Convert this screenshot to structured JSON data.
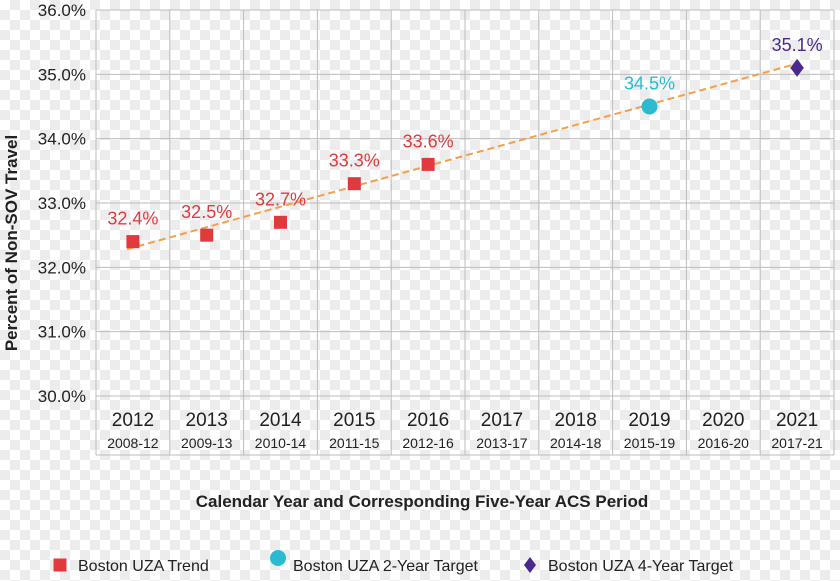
{
  "chart_data": {
    "type": "scatter",
    "title": "",
    "xlabel": "Calendar Year and Corresponding Five-Year ACS Period",
    "ylabel": "Percent of Non-SOV Travel",
    "ylim": [
      30.0,
      36.0
    ],
    "y_ticks": [
      "30.0%",
      "31.0%",
      "32.0%",
      "33.0%",
      "34.0%",
      "35.0%",
      "36.0%"
    ],
    "y_tick_values": [
      30,
      31,
      32,
      33,
      34,
      35,
      36
    ],
    "categories": [
      "2012",
      "2013",
      "2014",
      "2015",
      "2016",
      "2017",
      "2018",
      "2019",
      "2020",
      "2021"
    ],
    "periods": [
      "2008-12",
      "2009-13",
      "2010-14",
      "2011-15",
      "2012-16",
      "2013-17",
      "2014-18",
      "2015-19",
      "2016-20",
      "2017-21"
    ],
    "grid": true,
    "legend_position": "bottom",
    "series": [
      {
        "name": "Boston UZA Trend",
        "marker": "square",
        "color": "#e03a3e",
        "points": [
          {
            "x": "2012",
            "y": 32.4,
            "label": "32.4%"
          },
          {
            "x": "2013",
            "y": 32.5,
            "label": "32.5%"
          },
          {
            "x": "2014",
            "y": 32.7,
            "label": "32.7%"
          },
          {
            "x": "2015",
            "y": 33.3,
            "label": "33.3%"
          },
          {
            "x": "2016",
            "y": 33.6,
            "label": "33.6%"
          }
        ]
      },
      {
        "name": "Boston UZA 2-Year Target",
        "marker": "circle",
        "color": "#2bbbd0",
        "points": [
          {
            "x": "2019",
            "y": 34.5,
            "label": "34.5%"
          }
        ]
      },
      {
        "name": "Boston UZA 4-Year Target",
        "marker": "diamond",
        "color": "#4a2a8c",
        "points": [
          {
            "x": "2021",
            "y": 35.1,
            "label": "35.1%"
          }
        ]
      }
    ],
    "trendline": {
      "color": "#f4a04a",
      "style": "dashed",
      "from": {
        "x": "2012",
        "y": 32.28
      },
      "to": {
        "x": "2021",
        "y": 35.15
      }
    }
  }
}
